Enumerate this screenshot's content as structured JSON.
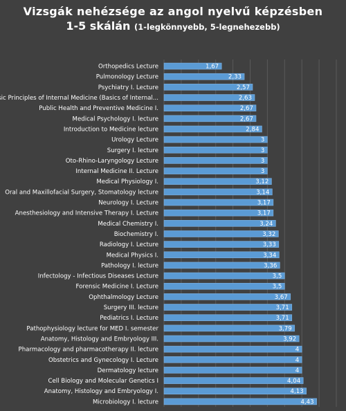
{
  "chart_data": {
    "type": "bar",
    "orientation": "horizontal",
    "title": "Vizsgák nehézsége az angol nyelvű képzésben",
    "title_line2_main": "1-5 skálán",
    "title_line2_sub": "(1-legkönnyebb, 5-legnehezebb)",
    "xlabel": "",
    "ylabel": "",
    "xlim": [
      0,
      5
    ],
    "x_ticks": [
      "0",
      "0,5",
      "1",
      "1,5",
      "2",
      "2,5",
      "3",
      "3,5",
      "4",
      "4,5",
      "5"
    ],
    "grid": true,
    "legend": "none",
    "bar_color": "#5b9bd5",
    "categories": [
      "Orthopedics Lecture",
      "Pulmonology Lecture",
      "Psychiatry I. Lecture",
      "Basic Principles of Internal Medicine (Basics of Internal...",
      "Public Health and Preventive Medicine I.",
      "Medical Psychology I. lecture",
      "Introduction to Medicine lecture",
      "Urology Lecture",
      "Surgery I. lecture",
      "Oto-Rhino-Laryngology Lecture",
      "Internal Medicine II. Lecture",
      "Medical Physiology I.",
      "Oral and Maxillofacial Surgery, Stomatology lecture",
      "Neurology I. Lecture",
      "Anesthesiology and Intensive Therapy I. Lecture",
      "Medical Chemistry I.",
      "Biochemistry I.",
      "Radiology I. Lecture",
      "Medical Physics I.",
      "Pathology I. lecture",
      "Infectology - Infectious Diseases Lecture",
      "Forensic Medicine I. Lecture",
      "Ophthalmology Lecture",
      "Surgery III. lecture",
      "Pediatrics I. Lecture",
      "Pathophysiology lecture for MED I. semester",
      "Anatomy, Histology and Embryology III.",
      "Pharmacology and pharmacotherapy II. lecture",
      "Obstetrics and Gynecology I. Lecture",
      "Dermatology lecture",
      "Cell Biology and Molecular Genetics I",
      "Anatomy, Histology and Embryology I.",
      "Microbiology I. lecture"
    ],
    "values": [
      1.67,
      2.33,
      2.57,
      2.63,
      2.67,
      2.67,
      2.84,
      3,
      3,
      3,
      3,
      3.12,
      3.14,
      3.17,
      3.17,
      3.24,
      3.32,
      3.33,
      3.34,
      3.36,
      3.5,
      3.5,
      3.67,
      3.71,
      3.71,
      3.79,
      3.92,
      4,
      4,
      4,
      4.04,
      4.13,
      4.43
    ],
    "value_labels": [
      "1,67",
      "2,33",
      "2,57",
      "2,63",
      "2,67",
      "2,67",
      "2,84",
      "3",
      "3",
      "3",
      "3",
      "3,12",
      "3,14",
      "3,17",
      "3,17",
      "3,24",
      "3,32",
      "3,33",
      "3,34",
      "3,36",
      "3,5",
      "3,5",
      "3,67",
      "3,71",
      "3,71",
      "3,79",
      "3,92",
      "4",
      "4",
      "4",
      "4,04",
      "4,13",
      "4,43"
    ]
  }
}
